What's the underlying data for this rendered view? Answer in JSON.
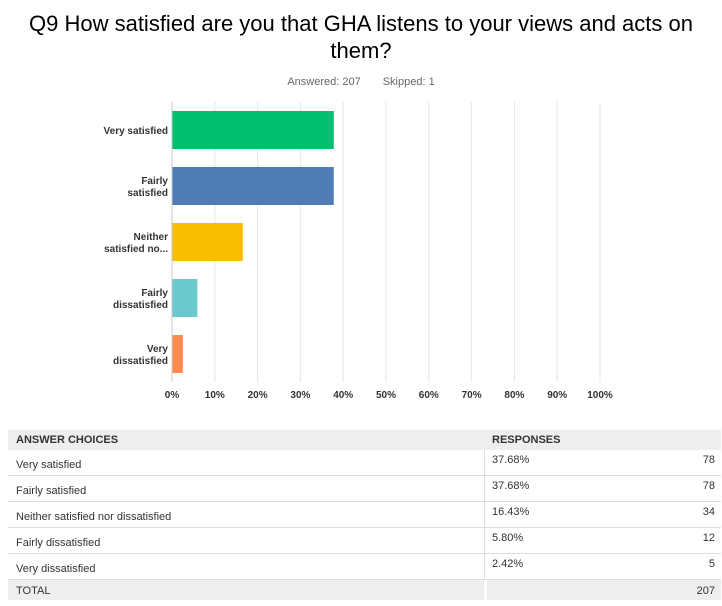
{
  "question": {
    "title": "Q9 How satisfied are you that GHA listens to your views and acts on them?",
    "answered": "Answered: 207",
    "skipped": "Skipped: 1"
  },
  "chart_data": {
    "type": "bar",
    "orientation": "horizontal",
    "categories": [
      "Very satisfied",
      "Fairly satisfied",
      "Neither satisfied no...",
      "Fairly dissatisfied",
      "Very dissatisfied"
    ],
    "category_lines": [
      [
        "Very satisfied"
      ],
      [
        "Fairly",
        "satisfied"
      ],
      [
        "Neither",
        "satisfied no..."
      ],
      [
        "Fairly",
        "dissatisfied"
      ],
      [
        "Very",
        "dissatisfied"
      ]
    ],
    "values": [
      37.68,
      37.68,
      16.43,
      5.8,
      2.42
    ],
    "colors": [
      "#00bf6f",
      "#507cb6",
      "#f9be00",
      "#6bc8cd",
      "#ff8b4f"
    ],
    "xlim": [
      0,
      100
    ],
    "ticks": [
      "0%",
      "10%",
      "20%",
      "30%",
      "40%",
      "50%",
      "60%",
      "70%",
      "80%",
      "90%",
      "100%"
    ],
    "grid": true
  },
  "table": {
    "headers": [
      "ANSWER CHOICES",
      "RESPONSES"
    ],
    "rows": [
      {
        "choice": "Very satisfied",
        "percent": "37.68%",
        "count": "78"
      },
      {
        "choice": "Fairly satisfied",
        "percent": "37.68%",
        "count": "78"
      },
      {
        "choice": "Neither satisfied nor dissatisfied",
        "percent": "16.43%",
        "count": "34"
      },
      {
        "choice": "Fairly dissatisfied",
        "percent": "5.80%",
        "count": "12"
      },
      {
        "choice": "Very dissatisfied",
        "percent": "2.42%",
        "count": "5"
      }
    ],
    "total_label": "TOTAL",
    "total_count": "207"
  }
}
